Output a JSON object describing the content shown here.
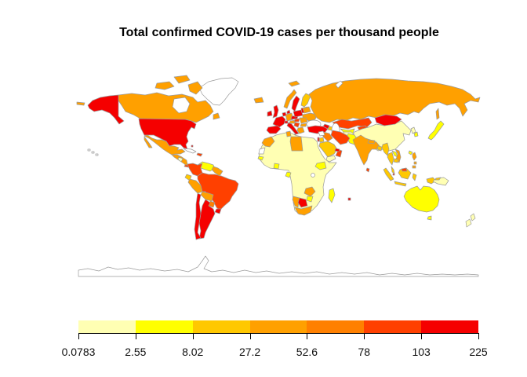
{
  "title": "Total confirmed COVID-19 cases per thousand people",
  "colors": {
    "background": "#FFFFFF",
    "country_border": "#9B9B9B",
    "axis": "#000000",
    "no_data": "#FFFFFF"
  },
  "chart_data": {
    "type": "choropleth",
    "title": "Total confirmed COVID-19 cases per thousand people",
    "projection": "equirectangular world map",
    "legend": {
      "position": "bottom",
      "breaks": [
        "0.0783",
        "2.55",
        "8.02",
        "27.2",
        "52.6",
        "78",
        "103",
        "225"
      ],
      "colors": [
        "#FFFFB3",
        "#FFFF00",
        "#FFC800",
        "#FFA000",
        "#FF8000",
        "#FF4000",
        "#F50000"
      ],
      "bins": [
        {
          "range": "0.0783-2.55",
          "color": "#FFFFB3"
        },
        {
          "range": "2.55-8.02",
          "color": "#FFFF00"
        },
        {
          "range": "8.02-27.2",
          "color": "#FFC800"
        },
        {
          "range": "27.2-52.6",
          "color": "#FFA000"
        },
        {
          "range": "52.6-78",
          "color": "#FF8000"
        },
        {
          "range": "78-103",
          "color": "#FF4000"
        },
        {
          "range": "103-225",
          "color": "#F50000"
        }
      ],
      "no_data_color": "#FFFFFF"
    },
    "regions": {
      "antarctica": {
        "name": "Antarctica (no data)",
        "color": "#FFFFFF"
      },
      "greenland": {
        "name": "Greenland (no data)",
        "color": "#FFFFFF"
      },
      "canada": {
        "name": "Canada",
        "color": "#FFA000"
      },
      "alaska": {
        "name": "Alaska (United States)",
        "color": "#F50000"
      },
      "usa": {
        "name": "United States",
        "color": "#F50000"
      },
      "hawaii": {
        "name": "Hawaii (no data)",
        "color": "#FFFFFF"
      },
      "mexico": {
        "name": "Mexico",
        "color": "#FFA000"
      },
      "central-america": {
        "name": "Guatemala / Honduras / Costa Rica",
        "color": "#FFA000"
      },
      "nicaragua": {
        "name": "Nicaragua",
        "color": "#FFFFB3"
      },
      "panama": {
        "name": "Panama",
        "color": "#FF4000"
      },
      "cuba": {
        "name": "Cuba (no data)",
        "color": "#FFFFFF"
      },
      "hispaniola": {
        "name": "Dominican Republic",
        "color": "#FF4000"
      },
      "bahamas": {
        "name": "Bahamas",
        "color": "#F50000"
      },
      "colombia": {
        "name": "Colombia",
        "color": "#FF4000"
      },
      "venezuela": {
        "name": "Venezuela",
        "color": "#FFFF00"
      },
      "guyanas": {
        "name": "Guyana / Suriname",
        "color": "#FFA000"
      },
      "ecuador": {
        "name": "Ecuador",
        "color": "#FFC800"
      },
      "peru": {
        "name": "Peru",
        "color": "#FFA000"
      },
      "brazil": {
        "name": "Brazil",
        "color": "#FF4000"
      },
      "bolivia": {
        "name": "Bolivia",
        "color": "#FFA000"
      },
      "paraguay": {
        "name": "Paraguay",
        "color": "#FF8000"
      },
      "uruguay": {
        "name": "Uruguay",
        "color": "#F50000"
      },
      "argentina": {
        "name": "Argentina",
        "color": "#F50000"
      },
      "chile": {
        "name": "Chile",
        "color": "#F50000"
      },
      "iceland": {
        "name": "Iceland",
        "color": "#FFA000"
      },
      "ireland": {
        "name": "Ireland",
        "color": "#F50000"
      },
      "uk": {
        "name": "United Kingdom",
        "color": "#F50000"
      },
      "norway": {
        "name": "Norway",
        "color": "#FFA000"
      },
      "sweden": {
        "name": "Sweden",
        "color": "#F50000"
      },
      "finland": {
        "name": "Finland",
        "color": "#FFC800"
      },
      "baltics": {
        "name": "Baltic states",
        "color": "#F50000"
      },
      "denmark": {
        "name": "Denmark",
        "color": "#F50000"
      },
      "germany": {
        "name": "Germany",
        "color": "#FFA000"
      },
      "benelux": {
        "name": "Belgium / Netherlands",
        "color": "#F50000"
      },
      "france": {
        "name": "France",
        "color": "#F50000"
      },
      "spain": {
        "name": "Spain / Portugal",
        "color": "#F50000"
      },
      "italy": {
        "name": "Italy",
        "color": "#F50000"
      },
      "switzerland": {
        "name": "Switzerland",
        "color": "#F50000"
      },
      "austria": {
        "name": "Austria",
        "color": "#FFA000"
      },
      "czech-slovakia": {
        "name": "Czechia / Slovakia",
        "color": "#F50000"
      },
      "poland": {
        "name": "Poland",
        "color": "#F50000"
      },
      "belarus": {
        "name": "Belarus",
        "color": "#FFA000"
      },
      "ukraine": {
        "name": "Ukraine",
        "color": "#FFA000"
      },
      "hungary": {
        "name": "Hungary",
        "color": "#FF4000"
      },
      "romania": {
        "name": "Romania",
        "color": "#FFA000"
      },
      "balkans": {
        "name": "Serbia / Balkans",
        "color": "#FF4000"
      },
      "bulgaria": {
        "name": "Bulgaria",
        "color": "#FFA000"
      },
      "greece": {
        "name": "Greece",
        "color": "#FFA000"
      },
      "russia": {
        "name": "Russia",
        "color": "#FFA000"
      },
      "svalbard": {
        "name": "Svalbard",
        "color": "#FFA000"
      },
      "novaya-zemlya": {
        "name": "Novaya Zemlya (no data)",
        "color": "#FFFFFF"
      },
      "sakhalin": {
        "name": "Sakhalin (Russia)",
        "color": "#FFA000"
      },
      "turkey": {
        "name": "Turkey",
        "color": "#F50000"
      },
      "georgia-armenia": {
        "name": "Georgia / Armenia",
        "color": "#F50000"
      },
      "azerbaijan": {
        "name": "Azerbaijan",
        "color": "#FFC800"
      },
      "kazakhstan": {
        "name": "Kazakhstan",
        "color": "#FF4000"
      },
      "uzbekistan": {
        "name": "Uzbekistan",
        "color": "#FFFF00"
      },
      "turkmenistan": {
        "name": "Turkmenistan",
        "color": "#FFA000"
      },
      "kyrgyzstan": {
        "name": "Kyrgyzstan",
        "color": "#FF4000"
      },
      "tajikistan": {
        "name": "Tajikistan",
        "color": "#FFFF00"
      },
      "mongolia": {
        "name": "Mongolia",
        "color": "#F50000"
      },
      "china": {
        "name": "China",
        "color": "#FFFFB3"
      },
      "taiwan": {
        "name": "Taiwan",
        "color": "#FFFF00"
      },
      "north-korea": {
        "name": "North Korea",
        "color": "#FFFFB3"
      },
      "south-korea": {
        "name": "South Korea",
        "color": "#FFFF00"
      },
      "japan": {
        "name": "Japan",
        "color": "#FFFF00"
      },
      "afghanistan": {
        "name": "Afghanistan",
        "color": "#FFFFB3"
      },
      "pakistan": {
        "name": "Pakistan",
        "color": "#FFFF00"
      },
      "india": {
        "name": "India",
        "color": "#FFA000"
      },
      "nepal": {
        "name": "Nepal",
        "color": "#FFA000"
      },
      "bangladesh": {
        "name": "Bangladesh",
        "color": "#FFC800"
      },
      "sri-lanka": {
        "name": "Sri Lanka",
        "color": "#FF4000"
      },
      "iran": {
        "name": "Iran",
        "color": "#FF4000"
      },
      "iraq": {
        "name": "Iraq",
        "color": "#FF8000"
      },
      "syria": {
        "name": "Syria (no data)",
        "color": "#FFFFFF"
      },
      "israel": {
        "name": "Israel",
        "color": "#F50000"
      },
      "jordan": {
        "name": "Jordan",
        "color": "#FFC800"
      },
      "saudi-arabia": {
        "name": "Saudi Arabia",
        "color": "#FFC800"
      },
      "yemen": {
        "name": "Yemen",
        "color": "#FFFFB3"
      },
      "oman": {
        "name": "Oman",
        "color": "#FF4000"
      },
      "uae": {
        "name": "United Arab Emirates",
        "color": "#F50000"
      },
      "myanmar": {
        "name": "Myanmar",
        "color": "#FFC800"
      },
      "thailand": {
        "name": "Thailand",
        "color": "#FFC800"
      },
      "laos": {
        "name": "Laos",
        "color": "#FFFF00"
      },
      "vietnam": {
        "name": "Vietnam",
        "color": "#FFA000"
      },
      "cambodia": {
        "name": "Cambodia",
        "color": "#FFC800"
      },
      "malaysia": {
        "name": "Malaysia",
        "color": "#FFC800"
      },
      "singapore": {
        "name": "Singapore",
        "color": "#F50000"
      },
      "brunei": {
        "name": "Brunei / East Malaysia",
        "color": "#FF4000"
      },
      "indonesia": {
        "name": "Indonesia",
        "color": "#FFC800"
      },
      "papua-new-guinea": {
        "name": "Papua New Guinea",
        "color": "#FFFFB3"
      },
      "png-patch": {
        "name": "Papua New Guinea highlands",
        "color": "#FFC800"
      },
      "philippines": {
        "name": "Philippines",
        "color": "#FFA000"
      },
      "africa-other": {
        "name": "Most of Africa",
        "color": "#FFFFB3"
      },
      "morocco": {
        "name": "Morocco",
        "color": "#FFA000"
      },
      "western-sahara": {
        "name": "Western Sahara (no data)",
        "color": "#FFFFFF"
      },
      "tunisia": {
        "name": "Tunisia",
        "color": "#FFA000"
      },
      "libya": {
        "name": "Libya",
        "color": "#FFA000"
      },
      "senegal": {
        "name": "Senegal",
        "color": "#FFFF00"
      },
      "ghana": {
        "name": "Ghana",
        "color": "#FFFF00"
      },
      "gabon": {
        "name": "Gabon",
        "color": "#FFFF00"
      },
      "ethiopia": {
        "name": "Ethiopia",
        "color": "#FFFF00"
      },
      "zambia": {
        "name": "Zambia",
        "color": "#FFA000"
      },
      "zimbabwe": {
        "name": "Zimbabwe",
        "color": "#FFFF00"
      },
      "namibia": {
        "name": "Namibia",
        "color": "#FFA000"
      },
      "botswana": {
        "name": "Botswana",
        "color": "#F50000"
      },
      "south-africa": {
        "name": "South Africa",
        "color": "#FFA000"
      },
      "madagascar": {
        "name": "Madagascar",
        "color": "#FFFF00"
      },
      "mauritius": {
        "name": "Mauritius",
        "color": "#F50000"
      },
      "australia": {
        "name": "Australia",
        "color": "#FFFF00"
      },
      "new-zealand": {
        "name": "New Zealand",
        "color": "#FFFFB3"
      },
      "aleutians": {
        "name": "Aleutian Islands",
        "color": "#FFA000"
      }
    }
  }
}
